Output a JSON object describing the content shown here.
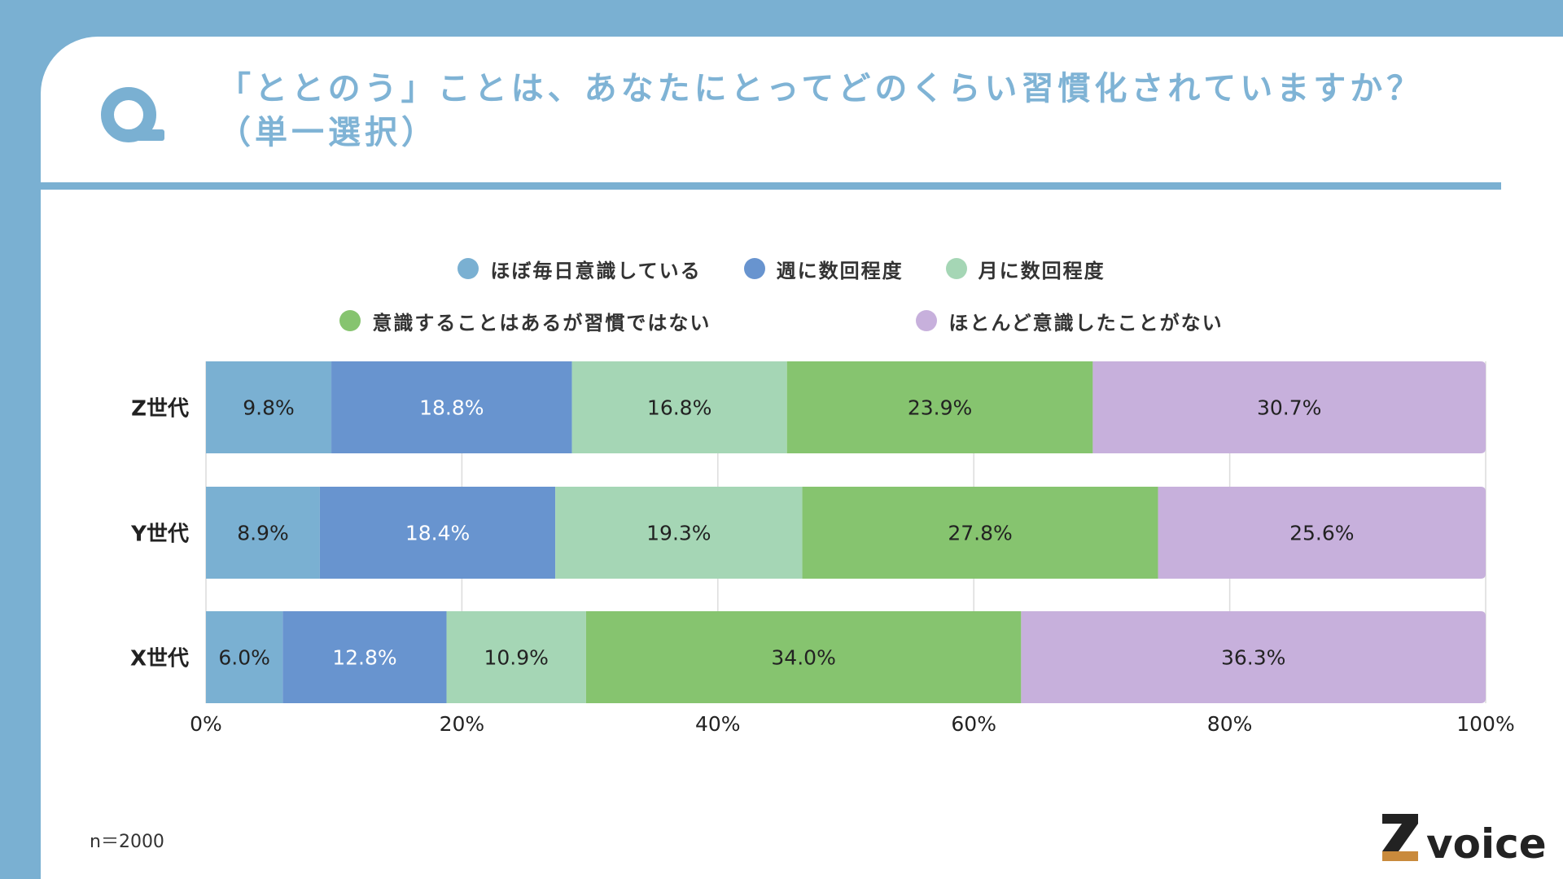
{
  "title": {
    "line1": "「ととのう」ことは、あなたにとってどのくらい習慣化されていますか？",
    "line2": "（単一選択）"
  },
  "note": "n＝2000",
  "logo": {
    "text": "voice"
  },
  "colors": {
    "everyday": "#7ab0d2",
    "weekly": "#6894cf",
    "monthly": "#a5d6b5",
    "aware": "#86c46f",
    "never": "#c7b0dc"
  },
  "chart_data": {
    "type": "bar",
    "orientation": "horizontal",
    "stacked": true,
    "categories": [
      "Z世代",
      "Y世代",
      "X世代"
    ],
    "series": [
      {
        "name": "ほぼ毎日意識している",
        "values": [
          9.8,
          8.9,
          6.0
        ],
        "labels": [
          "9.8%",
          "8.9%",
          "6.0%"
        ],
        "color": "#7ab0d2",
        "label_color": "#222222"
      },
      {
        "name": "週に数回程度",
        "values": [
          18.8,
          18.4,
          12.8
        ],
        "labels": [
          "18.8%",
          "18.4%",
          "12.8%"
        ],
        "color": "#6894cf",
        "label_color": "#ffffff"
      },
      {
        "name": "月に数回程度",
        "values": [
          16.8,
          19.3,
          10.9
        ],
        "labels": [
          "16.8%",
          "19.3%",
          "10.9%"
        ],
        "color": "#a5d6b5",
        "label_color": "#222222"
      },
      {
        "name": "意識することはあるが習慣ではない",
        "values": [
          23.9,
          27.8,
          34.0
        ],
        "labels": [
          "23.9%",
          "27.8%",
          "34.0%"
        ],
        "color": "#86c46f",
        "label_color": "#222222"
      },
      {
        "name": "ほとんど意識したことがない",
        "values": [
          30.7,
          25.6,
          36.3
        ],
        "labels": [
          "30.7%",
          "25.6%",
          "36.3%"
        ],
        "color": "#c7b0dc",
        "label_color": "#222222"
      }
    ],
    "xticks": [
      0,
      20,
      40,
      60,
      80,
      100
    ],
    "xtick_labels": [
      "0%",
      "20%",
      "40%",
      "60%",
      "80%",
      "100%"
    ],
    "xlim": [
      0,
      100
    ],
    "grid": true,
    "legend_position": "top-center"
  }
}
